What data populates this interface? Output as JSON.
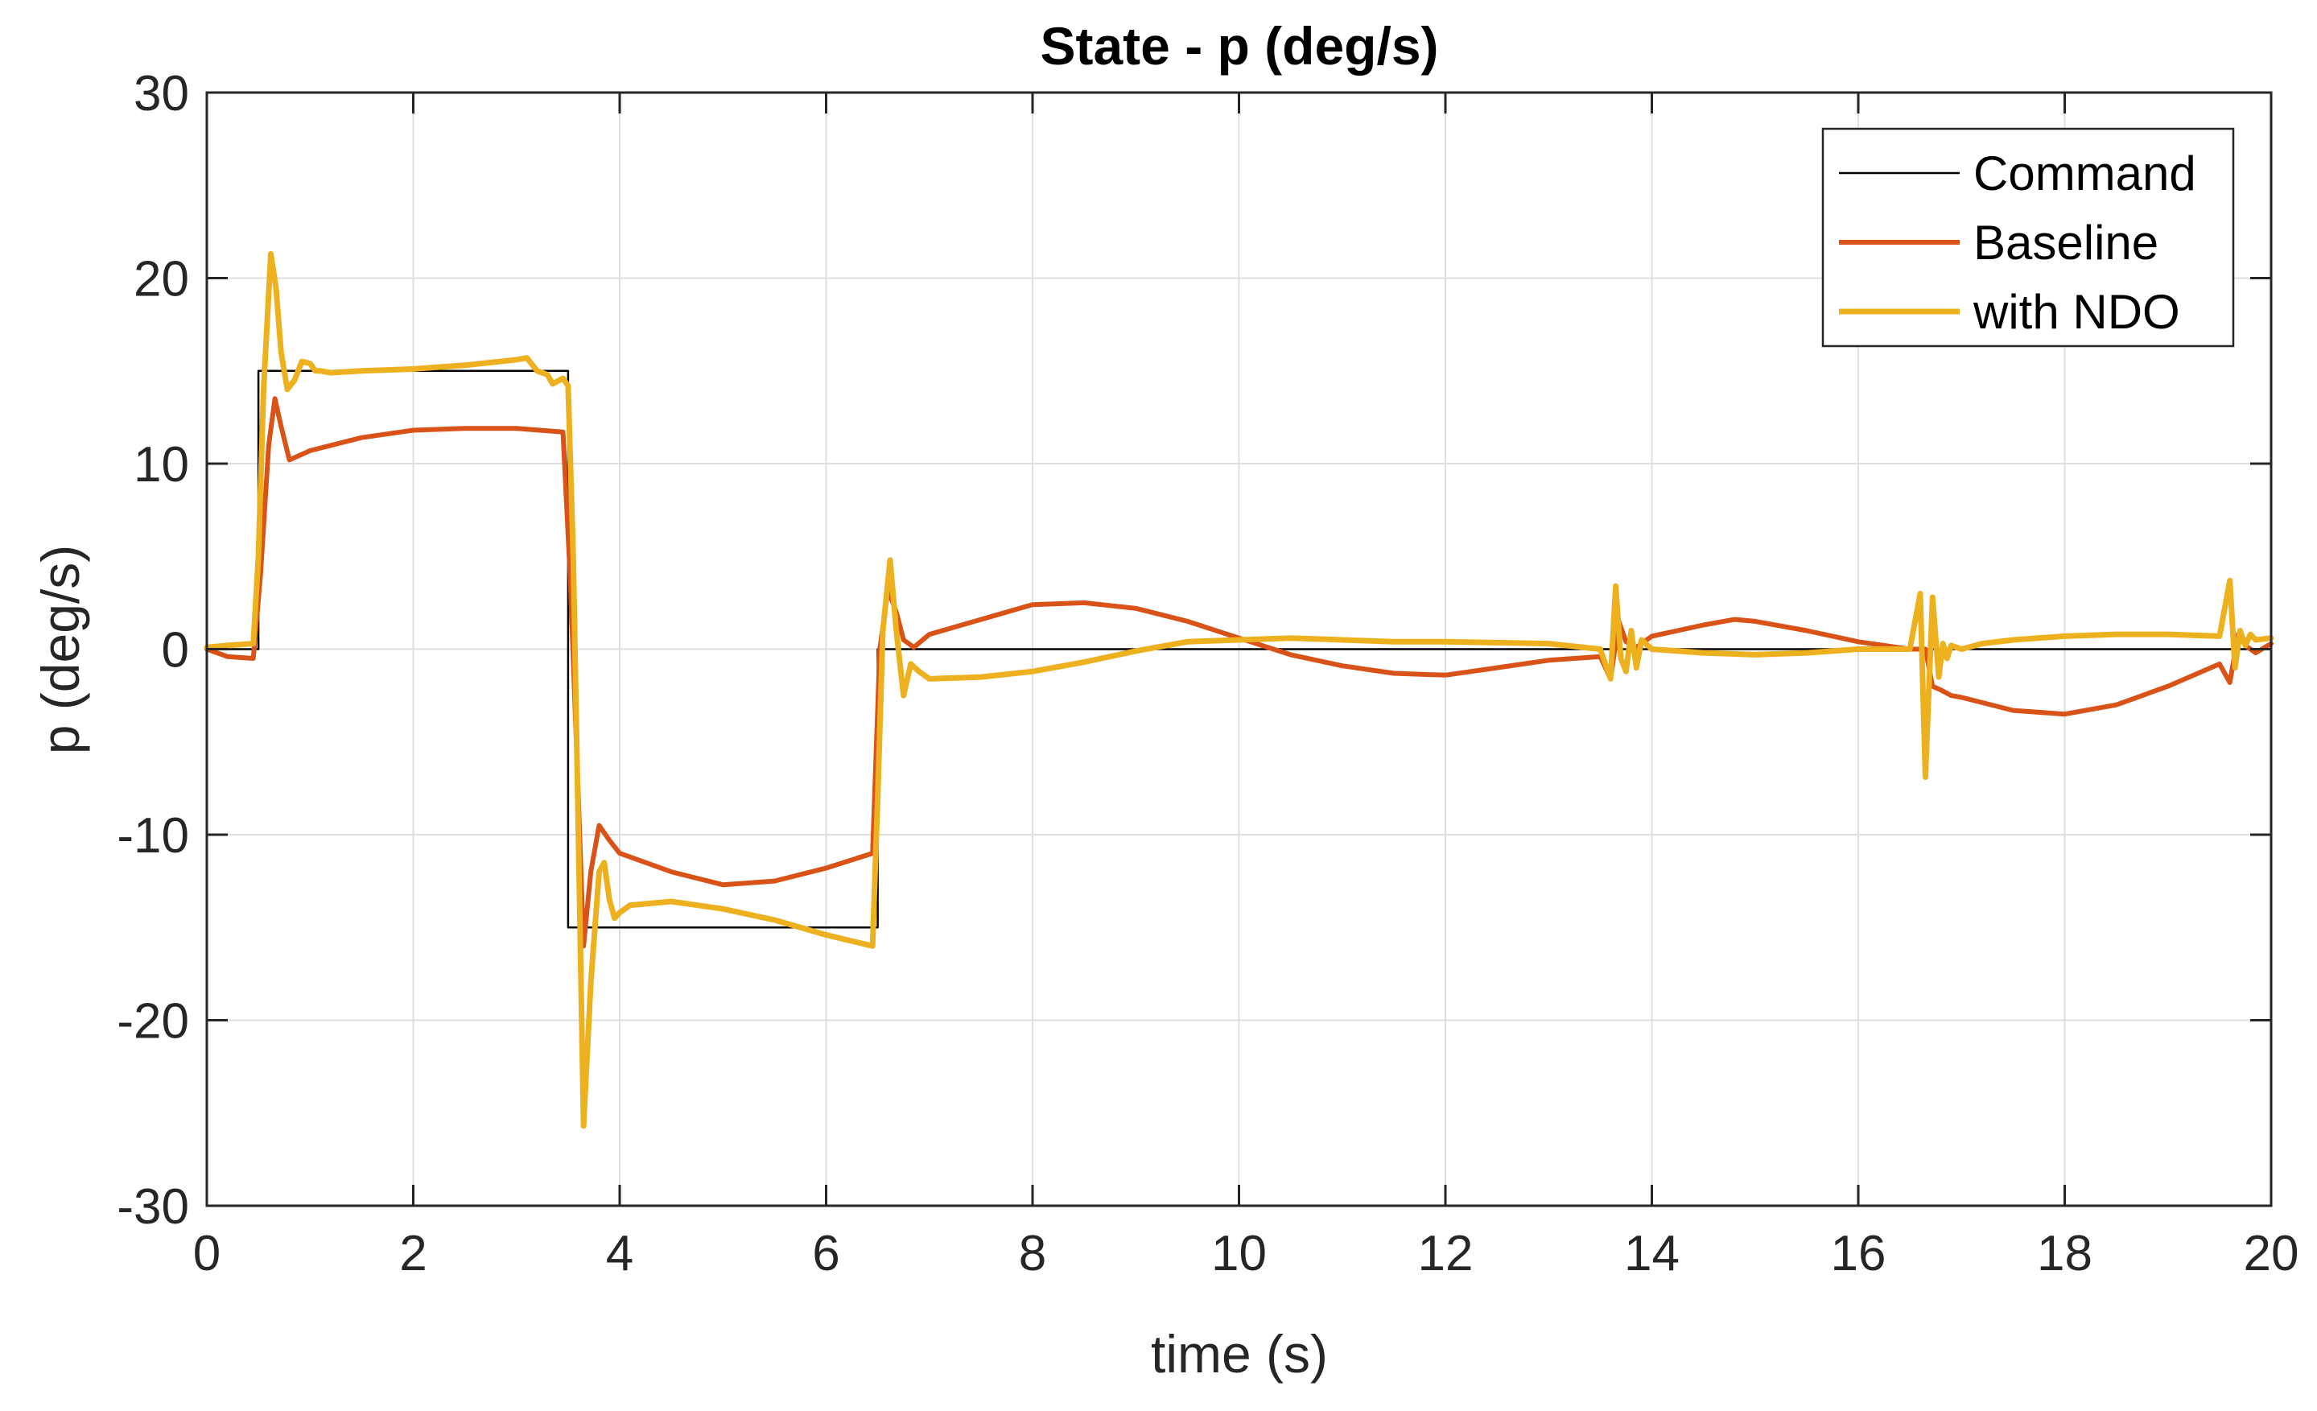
{
  "chart_data": {
    "type": "line",
    "title": "State - p (deg/s)",
    "xlabel": "time (s)",
    "ylabel": "p (deg/s)",
    "xlim": [
      0,
      20
    ],
    "ylim": [
      -30,
      30
    ],
    "xticks": [
      0,
      2,
      4,
      6,
      8,
      10,
      12,
      14,
      16,
      18,
      20
    ],
    "yticks": [
      -30,
      -20,
      -10,
      0,
      10,
      20,
      30
    ],
    "grid": true,
    "legend_position": "top-right",
    "series": [
      {
        "name": "Command",
        "color": "#000000",
        "x": [
          0,
          0.5,
          0.5,
          3.5,
          3.5,
          6.5,
          6.5,
          20
        ],
        "y": [
          0,
          0,
          15,
          15,
          -15,
          -15,
          0,
          0
        ]
      },
      {
        "name": "Baseline",
        "color": "#D95319",
        "x": [
          0,
          0.2,
          0.45,
          0.52,
          0.6,
          0.66,
          0.72,
          0.8,
          1.0,
          1.5,
          2.0,
          2.5,
          3.0,
          3.45,
          3.52,
          3.6,
          3.65,
          3.72,
          3.8,
          3.9,
          4.0,
          4.5,
          5.0,
          5.5,
          6.0,
          6.45,
          6.52,
          6.6,
          6.68,
          6.75,
          6.85,
          7.0,
          7.5,
          8.0,
          8.5,
          9.0,
          9.5,
          10.0,
          10.5,
          11.0,
          11.5,
          12.0,
          12.5,
          13.0,
          13.5,
          13.6,
          13.68,
          13.75,
          13.85,
          14.0,
          14.5,
          14.8,
          15.0,
          15.5,
          16.0,
          16.5,
          16.65,
          16.72,
          16.8,
          16.9,
          17.0,
          17.5,
          18.0,
          18.5,
          19.0,
          19.5,
          19.6,
          19.68,
          19.75,
          19.85,
          20.0
        ],
        "y": [
          0,
          -0.4,
          -0.5,
          4.0,
          11.0,
          13.5,
          12.0,
          10.2,
          10.7,
          11.4,
          11.8,
          11.9,
          11.9,
          11.7,
          4.0,
          -8.0,
          -16.0,
          -12.0,
          -9.5,
          -10.3,
          -11.0,
          -12.0,
          -12.7,
          -12.5,
          -11.8,
          -11.0,
          0.0,
          3.2,
          2.0,
          0.5,
          0.1,
          0.8,
          1.6,
          2.4,
          2.5,
          2.2,
          1.5,
          0.6,
          -0.3,
          -0.9,
          -1.3,
          -1.4,
          -1.0,
          -0.6,
          -0.4,
          -1.6,
          1.5,
          0.4,
          0.1,
          0.7,
          1.3,
          1.6,
          1.5,
          1.0,
          0.4,
          0.0,
          0.0,
          -2.0,
          -2.2,
          -2.5,
          -2.6,
          -3.3,
          -3.5,
          -3.0,
          -2.0,
          -0.8,
          -1.8,
          0.8,
          0.2,
          -0.2,
          0.3
        ]
      },
      {
        "name": "with NDO",
        "color": "#EDB120",
        "x": [
          0,
          0.2,
          0.45,
          0.5,
          0.55,
          0.62,
          0.67,
          0.72,
          0.78,
          0.85,
          0.92,
          1.0,
          1.05,
          1.1,
          1.2,
          1.5,
          2.0,
          2.5,
          3.0,
          3.1,
          3.2,
          3.3,
          3.35,
          3.45,
          3.5,
          3.55,
          3.6,
          3.65,
          3.72,
          3.8,
          3.85,
          3.9,
          3.95,
          4.0,
          4.1,
          4.5,
          5.0,
          5.5,
          6.0,
          6.45,
          6.5,
          6.55,
          6.62,
          6.68,
          6.75,
          6.82,
          6.9,
          7.0,
          7.5,
          8.0,
          8.5,
          9.0,
          9.5,
          10.0,
          10.5,
          11.0,
          11.5,
          12.0,
          13.0,
          13.5,
          13.6,
          13.65,
          13.7,
          13.75,
          13.8,
          13.85,
          13.9,
          14.0,
          14.5,
          15.0,
          15.5,
          16.0,
          16.5,
          16.6,
          16.65,
          16.72,
          16.78,
          16.82,
          16.86,
          16.9,
          17.0,
          17.2,
          17.5,
          18.0,
          18.5,
          19.0,
          19.5,
          19.6,
          19.65,
          19.7,
          19.75,
          19.8,
          19.85,
          20.0
        ],
        "y": [
          0.1,
          0.2,
          0.3,
          5.0,
          14.0,
          21.3,
          19.5,
          16.0,
          14.0,
          14.5,
          15.5,
          15.4,
          15.0,
          15.0,
          14.9,
          15.0,
          15.1,
          15.3,
          15.6,
          15.7,
          15.0,
          14.8,
          14.3,
          14.6,
          14.2,
          5.0,
          -10.0,
          -25.7,
          -18.0,
          -12.0,
          -11.5,
          -13.5,
          -14.5,
          -14.2,
          -13.8,
          -13.6,
          -14.0,
          -14.6,
          -15.4,
          -16.0,
          -8.0,
          1.0,
          4.8,
          1.0,
          -2.5,
          -0.8,
          -1.2,
          -1.6,
          -1.5,
          -1.2,
          -0.7,
          -0.1,
          0.4,
          0.5,
          0.6,
          0.5,
          0.4,
          0.4,
          0.3,
          0.0,
          -1.6,
          3.4,
          -0.5,
          -1.2,
          1.0,
          -1.0,
          0.5,
          0.0,
          -0.2,
          -0.3,
          -0.2,
          0.0,
          0.0,
          3.0,
          -6.9,
          2.8,
          -1.5,
          0.3,
          -0.5,
          0.2,
          0.0,
          0.3,
          0.5,
          0.7,
          0.8,
          0.8,
          0.7,
          3.7,
          -1.0,
          1.0,
          0.2,
          0.8,
          0.5,
          0.6
        ]
      }
    ]
  }
}
